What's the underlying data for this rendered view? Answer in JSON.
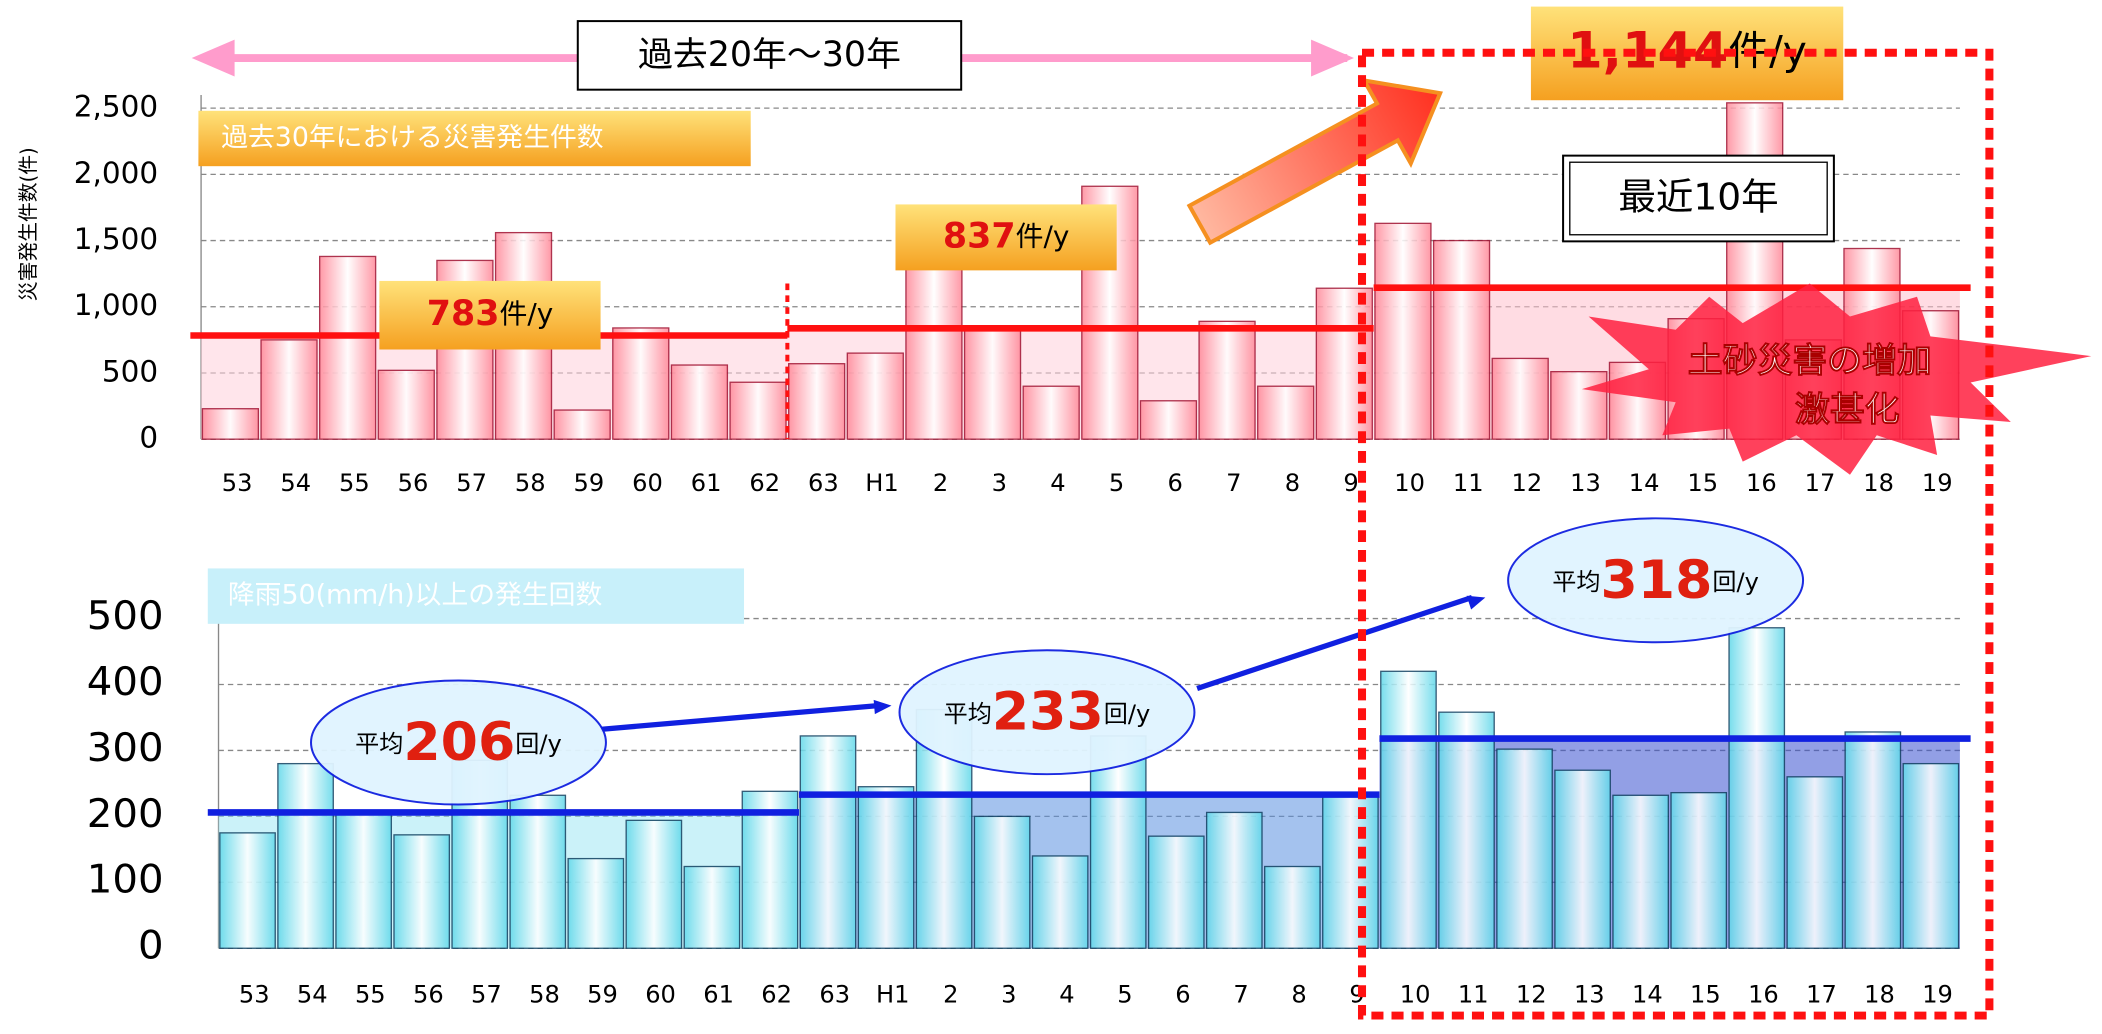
{
  "chart_data": [
    {
      "type": "bar",
      "title": "過去30年における災害発生件数",
      "y_label": "災害発生件数(件)",
      "categories": [
        "53",
        "54",
        "55",
        "56",
        "57",
        "58",
        "59",
        "60",
        "61",
        "62",
        "63",
        "H1",
        "2",
        "3",
        "4",
        "5",
        "6",
        "7",
        "8",
        "9",
        "10",
        "11",
        "12",
        "13",
        "14",
        "15",
        "16",
        "17",
        "18",
        "19"
      ],
      "values": [
        230,
        750,
        1380,
        520,
        1350,
        1560,
        220,
        840,
        560,
        430,
        570,
        650,
        1320,
        830,
        400,
        1910,
        290,
        890,
        400,
        1140,
        1630,
        1500,
        610,
        510,
        580,
        910,
        2540,
        750,
        1440,
        970
      ],
      "color": "#ff8a9a",
      "average_values": [
        783,
        837,
        1144
      ],
      "average_labels": [
        "783",
        "837",
        "1,144"
      ],
      "average_unit": "件/y",
      "ylim": [
        0,
        2500
      ],
      "yticks": [
        0,
        500,
        {
          "value": 1000,
          "label": "1,000"
        },
        {
          "value": 1500,
          "label": "1,500"
        },
        {
          "value": 2000,
          "label": "2,000"
        },
        {
          "value": 2500,
          "label": "2,500"
        }
      ],
      "grid": true
    },
    {
      "type": "bar",
      "title": "降雨50(mm/h)以上の発生回数",
      "categories": [
        "53",
        "54",
        "55",
        "56",
        "57",
        "58",
        "59",
        "60",
        "61",
        "62",
        "63",
        "H1",
        "2",
        "3",
        "4",
        "5",
        "6",
        "7",
        "8",
        "9",
        "10",
        "11",
        "12",
        "13",
        "14",
        "15",
        "16",
        "17",
        "18",
        "19"
      ],
      "values": [
        175,
        280,
        205,
        172,
        285,
        232,
        136,
        194,
        124,
        238,
        322,
        245,
        362,
        200,
        140,
        322,
        170,
        206,
        124,
        232,
        420,
        358,
        302,
        270,
        232,
        236,
        486,
        260,
        328,
        280
      ],
      "color": "#7fe3f0",
      "average_values": [
        206,
        233,
        318
      ],
      "average_prefix": "平均",
      "average_unit": "回/y",
      "ylim": [
        0,
        500
      ],
      "yticks": [
        0,
        100,
        200,
        300,
        400,
        500
      ],
      "grid": true
    }
  ],
  "annotations": {
    "period_past": "過去20年～30年",
    "period_recent": "最近10年",
    "callout": [
      "土砂災害の増加",
      "激甚化"
    ]
  }
}
